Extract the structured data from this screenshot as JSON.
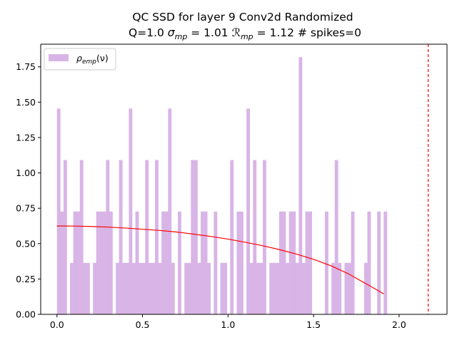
{
  "chart_data": {
    "type": "bar",
    "title_line1": "QC SSD for layer 9 Conv2d Randomized",
    "title_line2_plain": "Q=1.0 ",
    "title_sigma": "σ",
    "title_sigma_sub": "mp",
    "title_sigma_eq": " = 1.01 ",
    "title_R": "ℛ",
    "title_R_sub": "mp",
    "title_R_eq": " = 1.12 # spikes=0",
    "legend": {
      "label_rho": "ρ",
      "label_sub": "emp",
      "label_arg": "(ν)",
      "placement": "top-left"
    },
    "xlabel": "",
    "ylabel": "",
    "xlim": [
      -0.095,
      2.28
    ],
    "ylim": [
      0,
      1.91
    ],
    "xticks": [
      0.0,
      0.5,
      1.0,
      1.5,
      2.0
    ],
    "xtick_labels": [
      "0.0",
      "0.5",
      "1.0",
      "1.5",
      "2.0"
    ],
    "yticks": [
      0.0,
      0.25,
      0.5,
      0.75,
      1.0,
      1.25,
      1.5,
      1.75
    ],
    "ytick_labels": [
      "0.00",
      "0.25",
      "0.50",
      "0.75",
      "1.00",
      "1.25",
      "1.50",
      "1.75"
    ],
    "histogram": {
      "bin_start": 0.0,
      "bin_width": 0.0191,
      "values": [
        1.455,
        0.727,
        1.091,
        0.0,
        0.364,
        0.727,
        0.727,
        1.091,
        0.364,
        0.364,
        0.0,
        0.364,
        0.727,
        0.727,
        0.727,
        1.091,
        0.727,
        0.0,
        0.364,
        1.091,
        0.364,
        0.364,
        1.455,
        0.364,
        0.727,
        0.364,
        0.364,
        1.091,
        0.364,
        0.364,
        1.091,
        0.364,
        0.727,
        0.727,
        1.455,
        0.364,
        0.0,
        0.727,
        0.0,
        0.364,
        0.364,
        1.091,
        1.091,
        0.364,
        0.727,
        0.727,
        0.364,
        0.0,
        0.727,
        0.0,
        0.364,
        0.364,
        0.0,
        1.091,
        0.0,
        0.727,
        0.727,
        0.0,
        1.455,
        0.364,
        1.091,
        0.364,
        0.364,
        1.091,
        0.0,
        0.364,
        0.364,
        0.364,
        0.727,
        0.727,
        0.364,
        0.727,
        0.727,
        0.364,
        1.818,
        0.364,
        0.727,
        0.727,
        0.0,
        0.0,
        0.0,
        0.0,
        0.727,
        0.0,
        0.364,
        1.091,
        0.364,
        0.0,
        0.364,
        0.364,
        0.727,
        0.0,
        0.0,
        0.0,
        0.364,
        0.727,
        0.0,
        0.0,
        0.727,
        0.0,
        0.727
      ],
      "color": "#d8b5e6"
    },
    "mp_fit_curve": {
      "x": [
        0.0,
        0.1,
        0.2,
        0.3,
        0.4,
        0.5,
        0.6,
        0.7,
        0.8,
        0.9,
        1.0,
        1.1,
        1.2,
        1.3,
        1.4,
        1.5,
        1.6,
        1.7,
        1.8,
        1.85,
        1.91
      ],
      "y": [
        0.625,
        0.624,
        0.621,
        0.617,
        0.61,
        0.602,
        0.593,
        0.582,
        0.567,
        0.551,
        0.532,
        0.51,
        0.486,
        0.458,
        0.426,
        0.389,
        0.344,
        0.289,
        0.221,
        0.187,
        0.145
      ],
      "color": "#ff0000"
    },
    "threshold_line": {
      "x": 2.17,
      "color": "#ff0000",
      "style": "dashed"
    },
    "grid": false
  }
}
